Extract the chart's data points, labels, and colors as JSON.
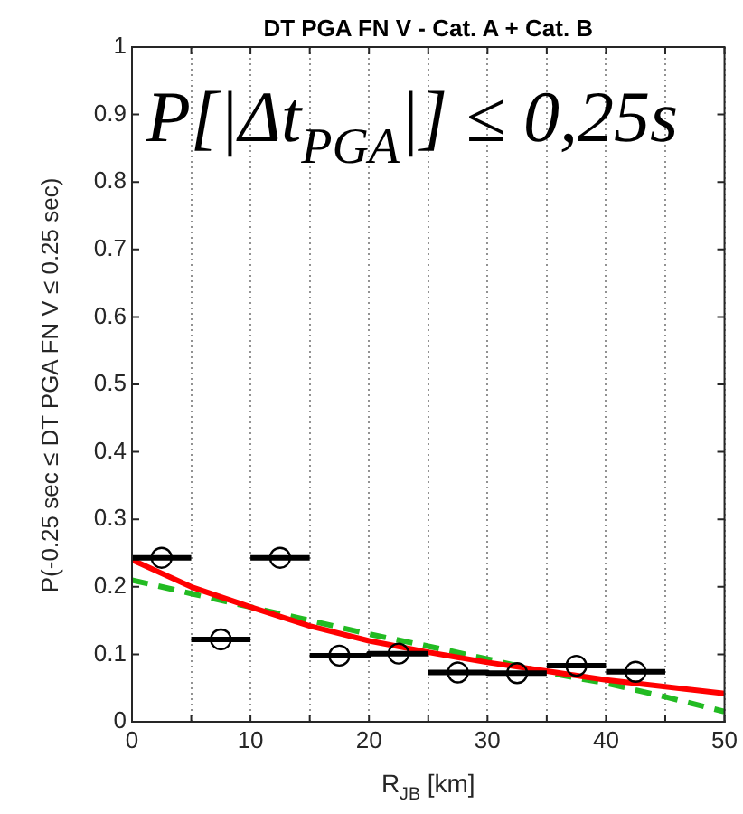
{
  "chart_data": {
    "type": "line",
    "title": "DT PGA FN V - Cat. A + Cat. B",
    "xlabel": "R$_{JB}$ [km]",
    "ylabel": "P(-0.25 sec ≤ DT PGA FN V ≤ 0.25 sec)",
    "annotations": [
      "P[|Δt$_{PGA}$|] ≤ 0,25s"
    ],
    "xlim": [
      0,
      50
    ],
    "ylim": [
      0,
      1
    ],
    "xticks": [
      0,
      {
        "value": 5,
        "label": null
      },
      10,
      {
        "value": 15,
        "label": null
      },
      20,
      {
        "value": 25,
        "label": null
      },
      30,
      {
        "value": 35,
        "label": null
      },
      40,
      {
        "value": 45,
        "label": null
      },
      50
    ],
    "yticks": [
      0,
      0.1,
      0.2,
      0.3,
      0.4,
      0.5,
      0.6,
      0.7,
      0.8,
      0.9,
      1
    ],
    "grid": "x",
    "legend": false,
    "series": [
      {
        "color": "#000000",
        "marker": "none",
        "line_style": "solid",
        "x": [
          0,
          5
        ],
        "values": [
          0.243,
          0.243
        ]
      },
      {
        "color": "#000000",
        "marker": "none",
        "line_style": "solid",
        "x": [
          5,
          10
        ],
        "values": [
          0.122,
          0.122
        ]
      },
      {
        "color": "#000000",
        "marker": "none",
        "line_style": "solid",
        "x": [
          10,
          15
        ],
        "values": [
          0.243,
          0.243
        ]
      },
      {
        "color": "#000000",
        "marker": "none",
        "line_style": "solid",
        "x": [
          15,
          20,
          20,
          25
        ],
        "values": [
          0.098,
          0.098,
          0.101,
          0.101
        ]
      },
      {
        "color": "#000000",
        "marker": "none",
        "line_style": "solid",
        "x": [
          25,
          30,
          30,
          35
        ],
        "values": [
          0.073,
          0.073,
          0.072,
          0.072
        ]
      },
      {
        "color": "#000000",
        "marker": "none",
        "line_style": "solid",
        "x": [
          35,
          40
        ],
        "values": [
          0.083,
          0.083
        ]
      },
      {
        "color": "#000000",
        "marker": "none",
        "line_style": "solid",
        "x": [
          40,
          45
        ],
        "values": [
          0.074,
          0.074
        ]
      },
      {
        "type": "scatter",
        "color": "#000000",
        "marker": "circle",
        "x": [
          2.5,
          7.5,
          12.5,
          17.5,
          22.5,
          27.5,
          32.5,
          37.5,
          42.5
        ],
        "values": [
          0.243,
          0.122,
          0.243,
          0.098,
          0.101,
          0.073,
          0.072,
          0.083,
          0.074
        ]
      },
      {
        "color": "#ff0000",
        "marker": "none",
        "line_style": "solid",
        "x": [
          0,
          5,
          10,
          15,
          20,
          25,
          30,
          35,
          40,
          45,
          50
        ],
        "values": [
          0.24,
          0.2,
          0.17,
          0.142,
          0.12,
          0.103,
          0.088,
          0.075,
          0.062,
          0.052,
          0.042
        ]
      },
      {
        "color": "#22bb22",
        "marker": "none",
        "line_style": "dashed",
        "x": [
          0,
          5,
          10,
          15,
          20,
          25,
          30,
          35,
          40,
          45,
          50
        ],
        "values": [
          0.21,
          0.19,
          0.17,
          0.15,
          0.13,
          0.112,
          0.093,
          0.073,
          0.057,
          0.037,
          0.015
        ]
      }
    ]
  }
}
